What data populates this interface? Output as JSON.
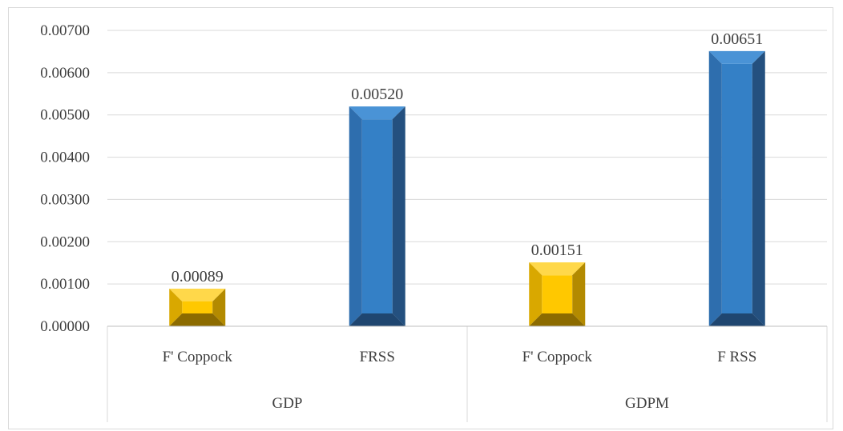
{
  "chart_data": {
    "type": "bar",
    "groups": [
      {
        "name": "GDP",
        "bars": [
          {
            "category": "F' Coppock",
            "value": 0.00089,
            "label": "0.00089",
            "color": "gold"
          },
          {
            "category": "FRSS",
            "value": 0.0052,
            "label": "0.00520",
            "color": "blue"
          }
        ]
      },
      {
        "name": "GDPM",
        "bars": [
          {
            "category": "F' Coppock",
            "value": 0.00151,
            "label": "0.00151",
            "color": "gold"
          },
          {
            "category": "F RSS",
            "value": 0.00651,
            "label": "0.00651",
            "color": "blue"
          }
        ]
      }
    ],
    "yticks": [
      "0.00000",
      "0.00100",
      "0.00200",
      "0.00300",
      "0.00400",
      "0.00500",
      "0.00600",
      "0.00700"
    ],
    "ylim": [
      0,
      0.007
    ],
    "grid": true,
    "title": "",
    "xlabel": "",
    "ylabel": ""
  },
  "colors": {
    "gold_face": "#FFC800",
    "gold_top": "#FFD84A",
    "gold_left": "#D9A800",
    "gold_right": "#B38A00",
    "gold_bottom": "#8C6B00",
    "blue_face": "#3480C6",
    "blue_top": "#4A93D6",
    "blue_left": "#2E6EAE",
    "blue_right": "#24507F",
    "blue_bottom": "#1F4670",
    "grid": "#d9d9d9",
    "text": "#404040"
  }
}
